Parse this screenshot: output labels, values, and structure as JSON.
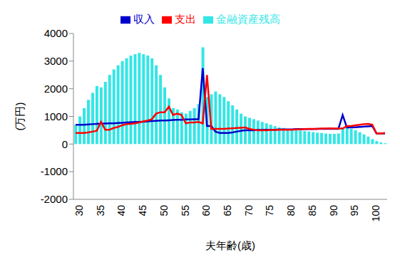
{
  "chart_data": {
    "type": "bar",
    "x_label": "夫年齢(歳)",
    "y_label": "(万円)",
    "categories": [
      "30",
      null,
      null,
      null,
      null,
      "35",
      null,
      null,
      null,
      null,
      "40",
      null,
      null,
      null,
      null,
      "45",
      null,
      null,
      null,
      null,
      "50",
      null,
      null,
      null,
      null,
      "55",
      null,
      null,
      null,
      null,
      "60",
      null,
      null,
      null,
      null,
      "65",
      null,
      null,
      null,
      null,
      "70",
      null,
      null,
      null,
      null,
      "75",
      null,
      null,
      null,
      null,
      "80",
      null,
      null,
      null,
      null,
      "85",
      null,
      null,
      null,
      null,
      "90",
      null,
      null,
      null,
      null,
      "95",
      null,
      null,
      null,
      null,
      "100",
      null,
      null,
      null
    ],
    "series": [
      {
        "name": "金融資産残高",
        "type": "bar",
        "color": "#33e6e6",
        "values": [
          700,
          1000,
          1300,
          1600,
          1850,
          2100,
          2050,
          2250,
          2500,
          2700,
          2850,
          3000,
          3100,
          3200,
          3250,
          3300,
          3250,
          3200,
          3100,
          2850,
          2500,
          2050,
          1650,
          1300,
          1250,
          1150,
          1100,
          1200,
          1300,
          1450,
          3500,
          1700,
          1800,
          1900,
          1800,
          1700,
          1550,
          1400,
          1250,
          1100,
          1000,
          950,
          900,
          850,
          800,
          750,
          700,
          650,
          600,
          580,
          550,
          530,
          510,
          490,
          470,
          450,
          430,
          410,
          400,
          380,
          370,
          370,
          380,
          600,
          600,
          550,
          500,
          430,
          350,
          270,
          180,
          110,
          60,
          30
        ]
      },
      {
        "name": "収入",
        "type": "line",
        "color": "#0000cc",
        "values": [
          700,
          700,
          700,
          710,
          720,
          730,
          740,
          740,
          750,
          750,
          760,
          770,
          780,
          790,
          800,
          800,
          810,
          820,
          830,
          840,
          850,
          850,
          860,
          870,
          880,
          880,
          890,
          890,
          900,
          900,
          2750,
          650,
          650,
          450,
          400,
          400,
          400,
          420,
          450,
          480,
          500,
          500,
          500,
          510,
          510,
          520,
          520,
          520,
          530,
          530,
          530,
          530,
          540,
          540,
          540,
          540,
          540,
          550,
          550,
          550,
          550,
          550,
          550,
          1050,
          600,
          600,
          610,
          620,
          630,
          640,
          650,
          380,
          380,
          380
        ]
      },
      {
        "name": "支出",
        "type": "line",
        "color": "#ff0000",
        "values": [
          400,
          400,
          400,
          420,
          450,
          480,
          800,
          520,
          520,
          580,
          620,
          680,
          720,
          730,
          750,
          780,
          820,
          850,
          900,
          1100,
          1150,
          1150,
          1350,
          1050,
          1100,
          1050,
          750,
          780,
          780,
          800,
          750,
          2500,
          550,
          550,
          550,
          550,
          560,
          570,
          580,
          590,
          600,
          550,
          520,
          500,
          500,
          500,
          510,
          510,
          520,
          520,
          520,
          520,
          530,
          530,
          540,
          550,
          550,
          550,
          560,
          560,
          570,
          560,
          560,
          560,
          650,
          650,
          680,
          700,
          720,
          730,
          700,
          380,
          380,
          400
        ]
      }
    ],
    "ylim": [
      -2000,
      4000
    ],
    "yticks": [
      -2000,
      -1000,
      0,
      1000,
      2000,
      3000,
      4000
    ],
    "grid": false,
    "legend": "top"
  }
}
